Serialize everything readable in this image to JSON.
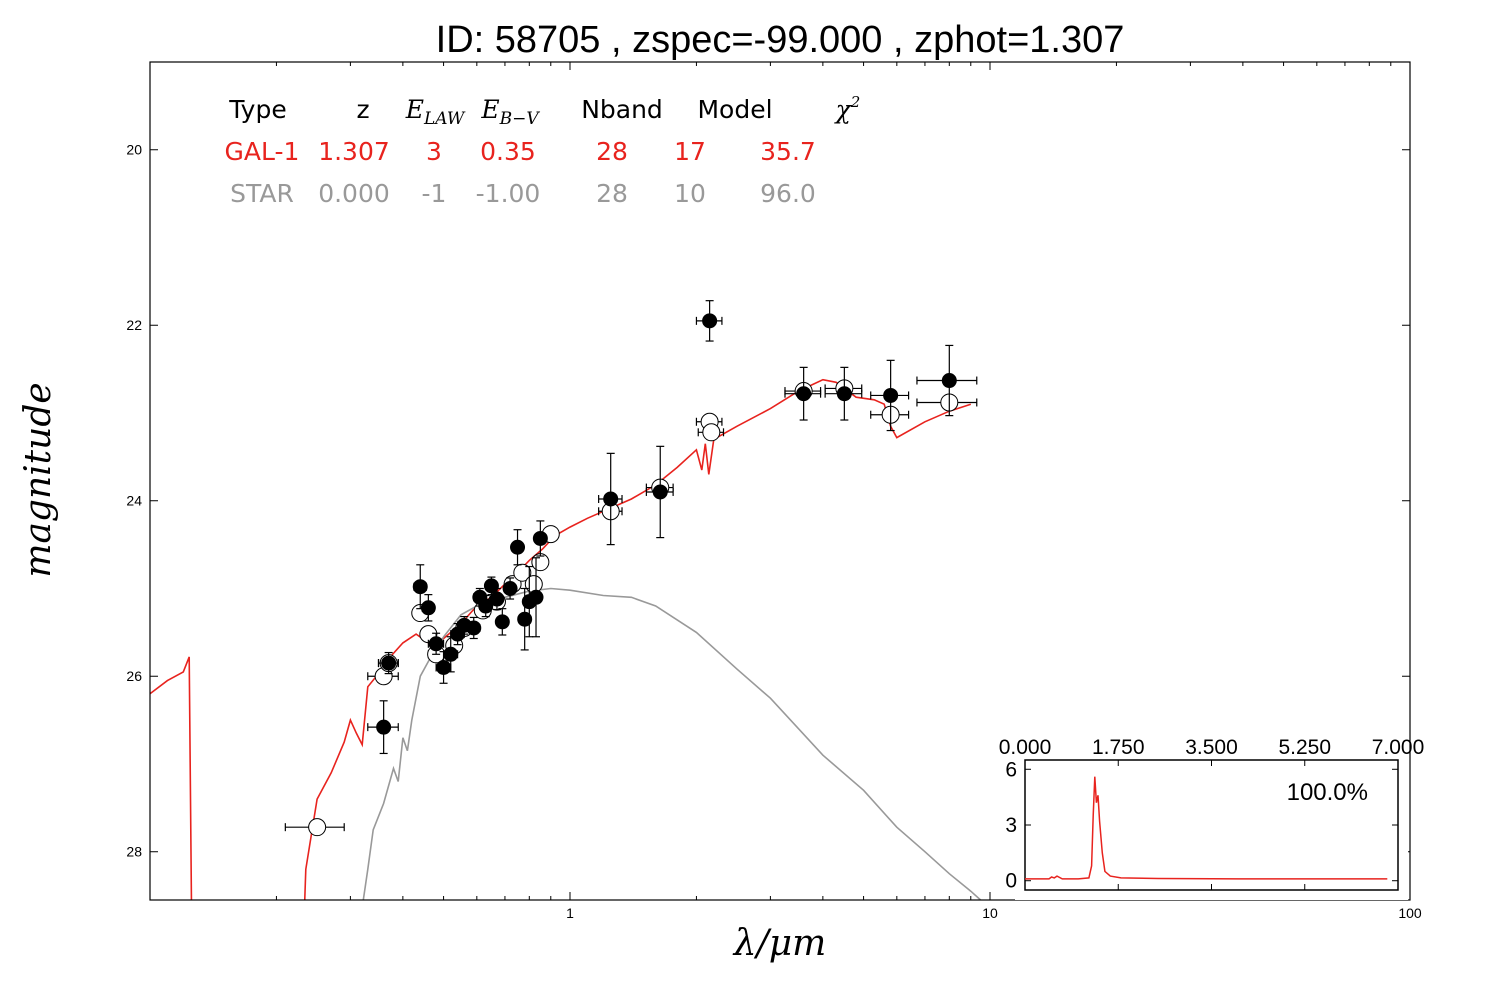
{
  "title": "ID:  58705 , zspec=-99.000 , zphot=1.307",
  "colors": {
    "galaxy": "#e8231e",
    "star": "#999999",
    "axes": "#000000"
  },
  "chart_data": [
    {
      "type": "scatter",
      "xlabel": "λ/μm",
      "ylabel": "magnitude",
      "x_scale": "log",
      "xlim": [
        0.1,
        100
      ],
      "ylim": [
        28.55,
        19
      ],
      "y_inverted": true,
      "x_ticks": [
        "1",
        "10",
        "100"
      ],
      "y_ticks": [
        "20",
        "22",
        "24",
        "26",
        "28"
      ],
      "fit_table": {
        "headers": [
          "Type",
          "z",
          "E_LAW",
          "E_B−V",
          "Nband",
          "Model",
          "χ²"
        ],
        "rows": [
          {
            "color": "#e8231e",
            "cells": [
              "GAL-1",
              "1.307",
              "3",
              "0.35",
              "28",
              "17",
              "35.7"
            ]
          },
          {
            "color": "#999999",
            "cells": [
              "STAR",
              "0.000",
              "-1",
              "-1.00",
              "28",
              "10",
              "96.0"
            ]
          }
        ]
      },
      "series": [
        {
          "kind": "observed",
          "marker": "filled circle",
          "points": [
            {
              "x": 0.36,
              "y": 26.58,
              "yerr": 0.3,
              "xerr": 0.03
            },
            {
              "x": 0.37,
              "y": 25.85,
              "yerr": 0.12,
              "xerr": 0.02
            },
            {
              "x": 0.44,
              "y": 24.98,
              "yerr": 0.25,
              "xerr": 0.015
            },
            {
              "x": 0.46,
              "y": 25.22,
              "yerr": 0.15,
              "xerr": 0.015
            },
            {
              "x": 0.48,
              "y": 25.63,
              "yerr": 0.12,
              "xerr": 0.02
            },
            {
              "x": 0.5,
              "y": 25.9,
              "yerr": 0.18,
              "xerr": 0.02
            },
            {
              "x": 0.52,
              "y": 25.75,
              "yerr": 0.2,
              "xerr": 0.02
            },
            {
              "x": 0.54,
              "y": 25.52,
              "yerr": 0.12,
              "xerr": 0.02
            },
            {
              "x": 0.56,
              "y": 25.42,
              "yerr": 0.1,
              "xerr": 0.02
            },
            {
              "x": 0.59,
              "y": 25.45,
              "yerr": 0.12,
              "xerr": 0.02
            },
            {
              "x": 0.61,
              "y": 25.1,
              "yerr": 0.1,
              "xerr": 0.02
            },
            {
              "x": 0.63,
              "y": 25.2,
              "yerr": 0.12,
              "xerr": 0.02
            },
            {
              "x": 0.65,
              "y": 24.97,
              "yerr": 0.1,
              "xerr": 0.02
            },
            {
              "x": 0.67,
              "y": 25.12,
              "yerr": 0.12,
              "xerr": 0.02
            },
            {
              "x": 0.69,
              "y": 25.38,
              "yerr": 0.15,
              "xerr": 0.02
            },
            {
              "x": 0.72,
              "y": 25.0,
              "yerr": 0.12,
              "xerr": 0.02
            },
            {
              "x": 0.75,
              "y": 24.53,
              "yerr": 0.2,
              "xerr": 0.02
            },
            {
              "x": 0.78,
              "y": 25.35,
              "yerr": 0.35,
              "xerr": 0.02
            },
            {
              "x": 0.8,
              "y": 25.15,
              "yerr": 0.4,
              "xerr": 0.02
            },
            {
              "x": 0.83,
              "y": 25.1,
              "yerr": 0.45,
              "xerr": 0.02
            },
            {
              "x": 0.85,
              "y": 24.43,
              "yerr": 0.2,
              "xerr": 0.02
            },
            {
              "x": 1.25,
              "y": 23.98,
              "yerr": 0.52,
              "xerr": 0.08
            },
            {
              "x": 1.64,
              "y": 23.9,
              "yerr": 0.52,
              "xerr": 0.12
            },
            {
              "x": 2.15,
              "y": 21.95,
              "yerr": 0.23,
              "xerr": 0.15
            },
            {
              "x": 3.6,
              "y": 22.78,
              "yerr": 0.3,
              "xerr": 0.35
            },
            {
              "x": 4.5,
              "y": 22.78,
              "yerr": 0.3,
              "xerr": 0.45
            },
            {
              "x": 5.8,
              "y": 22.8,
              "yerr": 0.4,
              "xerr": 0.6
            },
            {
              "x": 8.0,
              "y": 22.63,
              "yerr": 0.4,
              "xerr": 1.3
            }
          ]
        },
        {
          "kind": "model magnitudes",
          "marker": "open circle",
          "points": [
            {
              "x": 0.25,
              "y": 27.72,
              "xerr": 0.04
            },
            {
              "x": 0.36,
              "y": 26.0,
              "xerr": 0.03
            },
            {
              "x": 0.37,
              "y": 25.85,
              "xerr": 0.02
            },
            {
              "x": 0.44,
              "y": 25.28,
              "xerr": 0.015
            },
            {
              "x": 0.46,
              "y": 25.52,
              "xerr": 0.015
            },
            {
              "x": 0.48,
              "y": 25.75,
              "xerr": 0.02
            },
            {
              "x": 0.53,
              "y": 25.65,
              "xerr": 0.02
            },
            {
              "x": 0.56,
              "y": 25.45,
              "xerr": 0.02
            },
            {
              "x": 0.62,
              "y": 25.25,
              "xerr": 0.02
            },
            {
              "x": 0.67,
              "y": 25.15,
              "xerr": 0.02
            },
            {
              "x": 0.73,
              "y": 24.95,
              "xerr": 0.02
            },
            {
              "x": 0.77,
              "y": 24.82,
              "xerr": 0.02
            },
            {
              "x": 0.82,
              "y": 24.95,
              "xerr": 0.02
            },
            {
              "x": 0.85,
              "y": 24.7,
              "xerr": 0.02
            },
            {
              "x": 0.9,
              "y": 24.38,
              "xerr": 0.03
            },
            {
              "x": 1.25,
              "y": 24.12,
              "xerr": 0.08
            },
            {
              "x": 1.64,
              "y": 23.85,
              "xerr": 0.12
            },
            {
              "x": 2.15,
              "y": 23.1,
              "xerr": 0.15
            },
            {
              "x": 2.17,
              "y": 23.22,
              "xerr": 0.15
            },
            {
              "x": 3.6,
              "y": 22.75,
              "xerr": 0.35
            },
            {
              "x": 4.5,
              "y": 22.72,
              "xerr": 0.45
            },
            {
              "x": 5.8,
              "y": 23.02,
              "xerr": 0.6
            },
            {
              "x": 8.0,
              "y": 22.88,
              "xerr": 1.3
            }
          ]
        },
        {
          "kind": "galaxy template",
          "line": true,
          "points": [
            [
              0.1,
              26.2
            ],
            [
              0.11,
              26.05
            ],
            [
              0.12,
              25.95
            ],
            [
              0.124,
              25.78
            ],
            [
              0.126,
              29.5
            ],
            [
              0.15,
              29.5
            ],
            [
              0.151,
              28.55
            ],
            [
              0.155,
              29.5
            ],
            [
              0.23,
              29.5
            ],
            [
              0.235,
              28.2
            ],
            [
              0.25,
              27.4
            ],
            [
              0.27,
              27.1
            ],
            [
              0.29,
              26.75
            ],
            [
              0.3,
              26.5
            ],
            [
              0.31,
              26.65
            ],
            [
              0.32,
              26.78
            ],
            [
              0.33,
              26.12
            ],
            [
              0.35,
              25.97
            ],
            [
              0.37,
              25.8
            ],
            [
              0.4,
              25.62
            ],
            [
              0.43,
              25.52
            ],
            [
              0.46,
              25.62
            ],
            [
              0.48,
              25.6
            ],
            [
              0.5,
              25.57
            ],
            [
              0.55,
              25.4
            ],
            [
              0.6,
              25.2
            ],
            [
              0.65,
              25.1
            ],
            [
              0.7,
              24.95
            ],
            [
              0.75,
              24.82
            ],
            [
              0.8,
              24.68
            ],
            [
              0.86,
              24.55
            ],
            [
              0.92,
              24.4
            ],
            [
              1.0,
              24.3
            ],
            [
              1.1,
              24.2
            ],
            [
              1.2,
              24.12
            ],
            [
              1.4,
              23.98
            ],
            [
              1.6,
              23.82
            ],
            [
              1.8,
              23.62
            ],
            [
              2.0,
              23.42
            ],
            [
              2.06,
              23.65
            ],
            [
              2.1,
              23.35
            ],
            [
              2.14,
              23.7
            ],
            [
              2.2,
              23.3
            ],
            [
              2.5,
              23.15
            ],
            [
              3.0,
              22.95
            ],
            [
              3.5,
              22.75
            ],
            [
              4.0,
              22.62
            ],
            [
              4.3,
              22.65
            ],
            [
              4.8,
              22.82
            ],
            [
              5.3,
              22.85
            ],
            [
              5.6,
              22.9
            ],
            [
              5.8,
              23.15
            ],
            [
              6.0,
              23.28
            ],
            [
              7.0,
              23.1
            ],
            [
              8.0,
              22.98
            ],
            [
              9.0,
              22.9
            ]
          ]
        },
        {
          "kind": "star template",
          "line": true,
          "points": [
            [
              0.32,
              29.5
            ],
            [
              0.322,
              28.55
            ],
            [
              0.33,
              28.2
            ],
            [
              0.34,
              27.75
            ],
            [
              0.36,
              27.45
            ],
            [
              0.38,
              27.05
            ],
            [
              0.39,
              27.2
            ],
            [
              0.4,
              26.7
            ],
            [
              0.41,
              26.85
            ],
            [
              0.42,
              26.5
            ],
            [
              0.44,
              26.0
            ],
            [
              0.47,
              25.75
            ],
            [
              0.5,
              25.55
            ],
            [
              0.55,
              25.3
            ],
            [
              0.6,
              25.2
            ],
            [
              0.7,
              25.1
            ],
            [
              0.8,
              25.03
            ],
            [
              0.9,
              25.0
            ],
            [
              1.0,
              25.02
            ],
            [
              1.2,
              25.08
            ],
            [
              1.4,
              25.1
            ],
            [
              1.6,
              25.2
            ],
            [
              2.0,
              25.5
            ],
            [
              2.5,
              25.92
            ],
            [
              3.0,
              26.25
            ],
            [
              4.0,
              26.9
            ],
            [
              5.0,
              27.3
            ],
            [
              6.0,
              27.72
            ],
            [
              7.0,
              28.0
            ],
            [
              8.0,
              28.25
            ],
            [
              9.0,
              28.45
            ],
            [
              9.5,
              28.55
            ]
          ]
        }
      ]
    },
    {
      "type": "line",
      "label": "100.0%",
      "xlim": [
        0,
        7
      ],
      "ylim": [
        -0.5,
        6.5
      ],
      "x_ticks": [
        "0.000",
        "1.750",
        "3.500",
        "5.250",
        "7.000"
      ],
      "y_ticks": [
        "0",
        "3",
        "6"
      ],
      "series": [
        {
          "points": [
            [
              0,
              0.1
            ],
            [
              0.45,
              0.1
            ],
            [
              0.5,
              0.2
            ],
            [
              0.55,
              0.15
            ],
            [
              0.6,
              0.25
            ],
            [
              0.7,
              0.1
            ],
            [
              1.0,
              0.1
            ],
            [
              1.2,
              0.15
            ],
            [
              1.25,
              0.8
            ],
            [
              1.28,
              3.5
            ],
            [
              1.31,
              5.6
            ],
            [
              1.34,
              4.2
            ],
            [
              1.37,
              4.6
            ],
            [
              1.4,
              3.2
            ],
            [
              1.45,
              1.5
            ],
            [
              1.5,
              0.5
            ],
            [
              1.6,
              0.25
            ],
            [
              1.8,
              0.15
            ],
            [
              2.5,
              0.12
            ],
            [
              4.0,
              0.1
            ],
            [
              6.8,
              0.1
            ]
          ]
        }
      ]
    }
  ]
}
